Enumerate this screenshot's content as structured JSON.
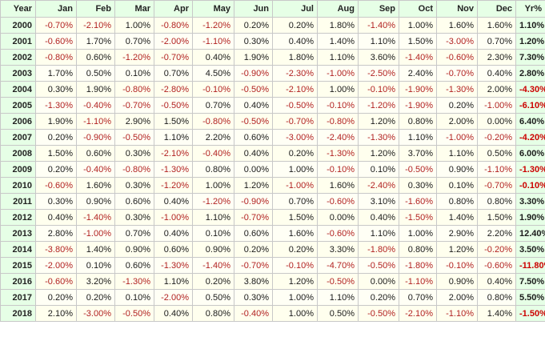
{
  "table": {
    "headers": [
      "Year",
      "Jan",
      "Feb",
      "Mar",
      "Apr",
      "May",
      "Jun",
      "Jul",
      "Aug",
      "Sep",
      "Oct",
      "Nov",
      "Dec",
      "Yr%"
    ],
    "rows": [
      {
        "year": "2000",
        "cells": [
          "-0.70%",
          "-2.10%",
          "1.00%",
          "-0.80%",
          "-1.20%",
          "0.20%",
          "0.20%",
          "1.80%",
          "-1.40%",
          "1.00%",
          "1.60%",
          "1.60%"
        ],
        "total": "1.10%"
      },
      {
        "year": "2001",
        "cells": [
          "-0.60%",
          "1.70%",
          "0.70%",
          "-2.00%",
          "-1.10%",
          "0.30%",
          "0.40%",
          "1.40%",
          "1.10%",
          "1.50%",
          "-3.00%",
          "0.70%"
        ],
        "total": "1.20%"
      },
      {
        "year": "2002",
        "cells": [
          "-0.80%",
          "0.60%",
          "-1.20%",
          "-0.70%",
          "0.40%",
          "1.90%",
          "1.80%",
          "1.10%",
          "3.60%",
          "-1.40%",
          "-0.60%",
          "2.30%"
        ],
        "total": "7.30%"
      },
      {
        "year": "2003",
        "cells": [
          "1.70%",
          "0.50%",
          "0.10%",
          "0.70%",
          "4.50%",
          "-0.90%",
          "-2.30%",
          "-1.00%",
          "-2.50%",
          "2.40%",
          "-0.70%",
          "0.40%"
        ],
        "total": "2.80%"
      },
      {
        "year": "2004",
        "cells": [
          "0.30%",
          "1.90%",
          "-0.80%",
          "-2.80%",
          "-0.10%",
          "-0.50%",
          "-2.10%",
          "1.00%",
          "-0.10%",
          "-1.90%",
          "-1.30%",
          "2.00%"
        ],
        "total": "-4.30%"
      },
      {
        "year": "2005",
        "cells": [
          "-1.30%",
          "-0.40%",
          "-0.70%",
          "-0.50%",
          "0.70%",
          "0.40%",
          "-0.50%",
          "-0.10%",
          "-1.20%",
          "-1.90%",
          "0.20%",
          "-1.00%"
        ],
        "total": "-6.10%"
      },
      {
        "year": "2006",
        "cells": [
          "1.90%",
          "-1.10%",
          "2.90%",
          "1.50%",
          "-0.80%",
          "-0.50%",
          "-0.70%",
          "-0.80%",
          "1.20%",
          "0.80%",
          "2.00%",
          "0.00%"
        ],
        "total": "6.40%"
      },
      {
        "year": "2007",
        "cells": [
          "0.20%",
          "-0.90%",
          "-0.50%",
          "1.10%",
          "2.20%",
          "0.60%",
          "-3.00%",
          "-2.40%",
          "-1.30%",
          "1.10%",
          "-1.00%",
          "-0.20%"
        ],
        "total": "-4.20%"
      },
      {
        "year": "2008",
        "cells": [
          "1.50%",
          "0.60%",
          "0.30%",
          "-2.10%",
          "-0.40%",
          "0.40%",
          "0.20%",
          "-1.30%",
          "1.20%",
          "3.70%",
          "1.10%",
          "0.50%"
        ],
        "total": "6.00%"
      },
      {
        "year": "2009",
        "cells": [
          "0.20%",
          "-0.40%",
          "-0.80%",
          "-1.30%",
          "0.80%",
          "0.00%",
          "1.00%",
          "-0.10%",
          "0.10%",
          "-0.50%",
          "0.90%",
          "-1.10%"
        ],
        "total": "-1.30%"
      },
      {
        "year": "2010",
        "cells": [
          "-0.60%",
          "1.60%",
          "0.30%",
          "-1.20%",
          "1.00%",
          "1.20%",
          "-1.00%",
          "1.60%",
          "-2.40%",
          "0.30%",
          "0.10%",
          "-0.70%"
        ],
        "total": "-0.10%"
      },
      {
        "year": "2011",
        "cells": [
          "0.30%",
          "0.90%",
          "0.60%",
          "0.40%",
          "-1.20%",
          "-0.90%",
          "0.70%",
          "-0.60%",
          "3.10%",
          "-1.60%",
          "0.80%",
          "0.80%"
        ],
        "total": "3.30%"
      },
      {
        "year": "2012",
        "cells": [
          "0.40%",
          "-1.40%",
          "0.30%",
          "-1.00%",
          "1.10%",
          "-0.70%",
          "1.50%",
          "0.00%",
          "0.40%",
          "-1.50%",
          "1.40%",
          "1.50%"
        ],
        "total": "1.90%"
      },
      {
        "year": "2013",
        "cells": [
          "2.80%",
          "-1.00%",
          "0.70%",
          "0.40%",
          "0.10%",
          "0.60%",
          "1.60%",
          "-0.60%",
          "1.10%",
          "1.00%",
          "2.90%",
          "2.20%"
        ],
        "total": "12.40%"
      },
      {
        "year": "2014",
        "cells": [
          "-3.80%",
          "1.40%",
          "0.90%",
          "0.60%",
          "0.90%",
          "0.20%",
          "0.20%",
          "3.30%",
          "-1.80%",
          "0.80%",
          "1.20%",
          "-0.20%"
        ],
        "total": "3.50%"
      },
      {
        "year": "2015",
        "cells": [
          "-2.00%",
          "0.10%",
          "0.60%",
          "-1.30%",
          "-1.40%",
          "-0.70%",
          "-0.10%",
          "-4.70%",
          "-0.50%",
          "-1.80%",
          "-0.10%",
          "-0.60%"
        ],
        "total": "-11.80%"
      },
      {
        "year": "2016",
        "cells": [
          "-0.60%",
          "3.20%",
          "-1.30%",
          "1.10%",
          "0.20%",
          "3.80%",
          "1.20%",
          "-0.50%",
          "0.00%",
          "-1.10%",
          "0.90%",
          "0.40%"
        ],
        "total": "7.50%"
      },
      {
        "year": "2017",
        "cells": [
          "0.20%",
          "0.20%",
          "0.10%",
          "-2.00%",
          "0.50%",
          "0.30%",
          "1.00%",
          "1.10%",
          "0.20%",
          "0.70%",
          "2.00%",
          "0.80%"
        ],
        "total": "5.50%"
      },
      {
        "year": "2018",
        "cells": [
          "2.10%",
          "-3.00%",
          "-0.50%",
          "0.40%",
          "0.80%",
          "-0.40%",
          "1.00%",
          "0.50%",
          "-0.50%",
          "-2.10%",
          "-1.10%",
          "1.40%"
        ],
        "total": "-1.50%"
      }
    ]
  },
  "colors": {
    "header_bg": "#e6ffe6",
    "cell_bg": "#ffffee",
    "border": "#c8c8c8",
    "negative_text": "#b22222",
    "positive_text": "#1a1a1a"
  }
}
